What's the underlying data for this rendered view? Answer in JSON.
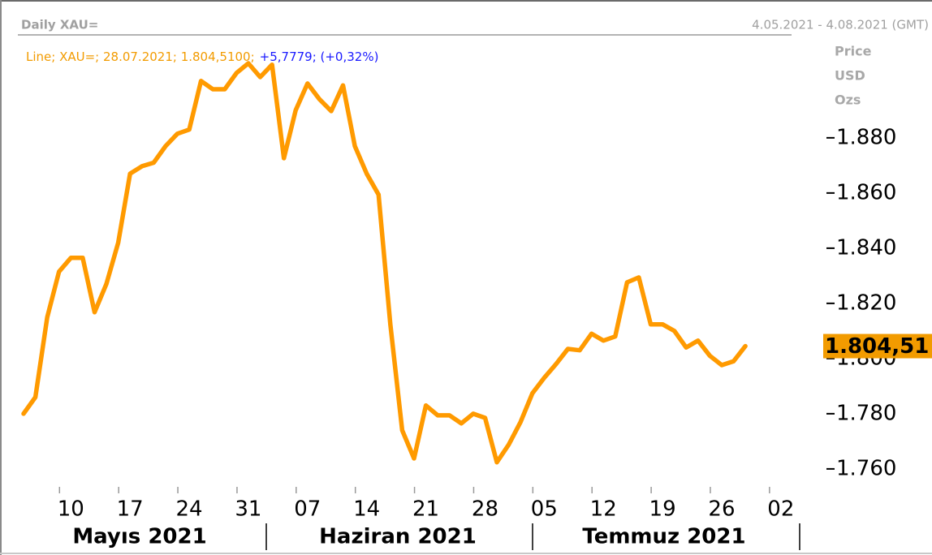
{
  "chart_data": {
    "type": "line",
    "title": "Daily XAU=",
    "date_range": "4.05.2021 - 4.08.2021 (GMT)",
    "legend_text": "Line; XAU=; 28.07.2021; 1.804,5100;",
    "change_text": "+5,7779; (+0,32%)",
    "y_axis_label": [
      "Price",
      "USD",
      "Ozs"
    ],
    "month_labels": [
      "Mayıs 2021",
      "Haziran 2021",
      "Temmuz 2021"
    ],
    "color": "#ff9a00",
    "x": [
      "2021-05-04",
      "2021-05-05",
      "2021-05-06",
      "2021-05-07",
      "2021-05-10",
      "2021-05-11",
      "2021-05-12",
      "2021-05-13",
      "2021-05-14",
      "2021-05-17",
      "2021-05-18",
      "2021-05-19",
      "2021-05-20",
      "2021-05-21",
      "2021-05-24",
      "2021-05-25",
      "2021-05-26",
      "2021-05-27",
      "2021-05-28",
      "2021-05-31",
      "2021-06-01",
      "2021-06-02",
      "2021-06-03",
      "2021-06-04",
      "2021-06-07",
      "2021-06-08",
      "2021-06-09",
      "2021-06-10",
      "2021-06-11",
      "2021-06-14",
      "2021-06-15",
      "2021-06-16",
      "2021-06-17",
      "2021-06-18",
      "2021-06-21",
      "2021-06-22",
      "2021-06-23",
      "2021-06-24",
      "2021-06-25",
      "2021-06-28",
      "2021-06-29",
      "2021-06-30",
      "2021-07-01",
      "2021-07-02",
      "2021-07-05",
      "2021-07-06",
      "2021-07-07",
      "2021-07-08",
      "2021-07-09",
      "2021-07-12",
      "2021-07-13",
      "2021-07-14",
      "2021-07-15",
      "2021-07-16",
      "2021-07-19",
      "2021-07-20",
      "2021-07-21",
      "2021-07-22",
      "2021-07-23",
      "2021-07-26",
      "2021-07-27",
      "2021-07-28"
    ],
    "values": [
      1780,
      1786,
      1815,
      1831.5,
      1836.5,
      1836.5,
      1816.8,
      1827,
      1842,
      1867,
      1869.7,
      1871,
      1877,
      1881.5,
      1883,
      1900.6,
      1897.6,
      1897.6,
      1903.5,
      1907,
      1902,
      1906.5,
      1872.6,
      1890,
      1899.7,
      1894,
      1889.7,
      1899,
      1877,
      1867,
      1859.4,
      1812.4,
      1774,
      1763.8,
      1783,
      1779.4,
      1779.4,
      1776.5,
      1780,
      1778.5,
      1762.4,
      1768.8,
      1777,
      1787.4,
      1793,
      1798,
      1803.5,
      1803,
      1809,
      1806.5,
      1808,
      1827.6,
      1829.4,
      1812.4,
      1812.4,
      1810,
      1804,
      1806.5,
      1801,
      1797.6,
      1799,
      1804.5
    ],
    "xlim": [
      "2021-05-04",
      "2021-08-04"
    ],
    "xticks": [
      {
        "value": "2021-05-10",
        "label": "10"
      },
      {
        "value": "2021-05-17",
        "label": "17"
      },
      {
        "value": "2021-05-24",
        "label": "24"
      },
      {
        "value": "2021-05-31",
        "label": "31"
      },
      {
        "value": "2021-06-07",
        "label": "07"
      },
      {
        "value": "2021-06-14",
        "label": "14"
      },
      {
        "value": "2021-06-21",
        "label": "21"
      },
      {
        "value": "2021-06-28",
        "label": "28"
      },
      {
        "value": "2021-07-05",
        "label": "05"
      },
      {
        "value": "2021-07-12",
        "label": "12"
      },
      {
        "value": "2021-07-19",
        "label": "19"
      },
      {
        "value": "2021-07-26",
        "label": "26"
      },
      {
        "value": "2021-08-02",
        "label": "02"
      }
    ],
    "ylim": [
      1753.5,
      1917.6
    ],
    "yticks": [
      {
        "value": 1760,
        "label": "1.760"
      },
      {
        "value": 1780,
        "label": "1.780"
      },
      {
        "value": 1800,
        "label": "1.800"
      },
      {
        "value": 1820,
        "label": "1.820"
      },
      {
        "value": 1840,
        "label": "1.840"
      },
      {
        "value": 1860,
        "label": "1.860"
      },
      {
        "value": 1880,
        "label": "1.880"
      }
    ],
    "last_value": {
      "value": 1804.51,
      "label": "1.804,51"
    },
    "last_value_color": "#f29b00"
  }
}
